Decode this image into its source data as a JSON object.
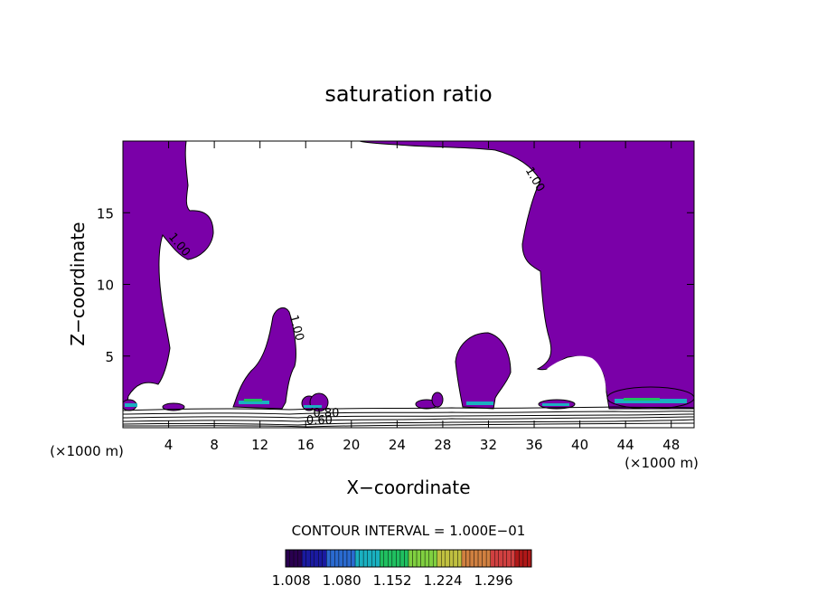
{
  "chart_data": {
    "type": "contour",
    "title": "saturation ratio",
    "xlabel": "X−coordinate",
    "ylabel": "Z−coordinate",
    "x_unit": "(×1000 m)",
    "z_unit": "(×1000 m)",
    "xlim": [
      0,
      50
    ],
    "ylim": [
      0,
      20
    ],
    "x_ticks": [
      4,
      8,
      12,
      16,
      20,
      24,
      28,
      32,
      36,
      40,
      44,
      48
    ],
    "y_ticks": [
      5,
      10,
      15
    ],
    "contour_interval_label": "CONTOUR INTERVAL = 1.000E−01",
    "contour_labels": [
      {
        "text": "1.00",
        "x": 4.7,
        "z": 12.6,
        "rotation": 50
      },
      {
        "text": "1.00",
        "x": 14.9,
        "z": 6.9,
        "rotation": 75
      },
      {
        "text": "1.00",
        "x": 35.8,
        "z": 17.2,
        "rotation": 60
      },
      {
        "text": "0.80",
        "x": 17.8,
        "z": 0.75,
        "rotation": 0
      },
      {
        "text": "0.60",
        "x": 17.2,
        "z": 0.25,
        "rotation": 0
      }
    ],
    "colorbar": {
      "ticks": [
        "1.008",
        "1.080",
        "1.152",
        "1.224",
        "1.296"
      ],
      "min": 1.0,
      "max": 1.35,
      "colors": [
        "#2a0050",
        "#1a1aa0",
        "#2a6ad0",
        "#1ab0c0",
        "#20c060",
        "#80d040",
        "#c0c040",
        "#d08040",
        "#d04040",
        "#b01818"
      ]
    },
    "fill_color": "#7a00a8"
  }
}
